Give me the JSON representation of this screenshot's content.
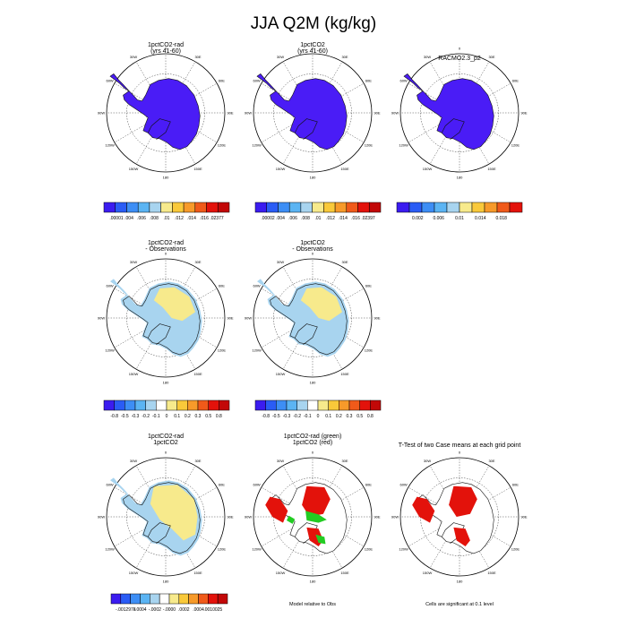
{
  "title": "JJA Q2M (kg/kg)",
  "colors": {
    "coast": "#111111",
    "model_fill": "#4a1cf6",
    "diff_positive": "#f7ea8c",
    "diff_negative": "#a8d4ef",
    "signif_red": "#e3120b",
    "signif_green": "#22cc22"
  },
  "panels": [
    {
      "title_lines": [
        "1pctCO2-rad",
        "(yrs 41-60)"
      ],
      "field": "model"
    },
    {
      "title_lines": [
        "1pctCO2",
        "(yrs 41-60)"
      ],
      "field": "model"
    },
    {
      "title_lines": [
        "RACMO2.3_p2",
        ""
      ],
      "field": "model"
    },
    {
      "title_lines": [
        "1pctCO2-rad",
        "- Observations"
      ],
      "field": "diff"
    },
    {
      "title_lines": [
        "1pctCO2",
        "- Observations"
      ],
      "field": "diff"
    },
    {
      "title_lines": [
        "1pctCO2-rad (green)",
        "1pctCO2 (red)"
      ],
      "field": "relative"
    },
    {
      "title_lines": [
        "1pctCO2-rad",
        "1pctCO2"
      ],
      "field": "diff2"
    },
    {
      "title_lines": [
        "T-Test of two Case means at each grid point",
        ""
      ],
      "field": "ttest"
    }
  ],
  "map_labels": {
    "lon_ticks": [
      "0",
      "30E",
      "60E",
      "90E",
      "120E",
      "150E",
      "180",
      "150W",
      "120W",
      "90W",
      "60W",
      "30W"
    ]
  },
  "colorbars": [
    {
      "colors": [
        "#3b1cf0",
        "#2a5cf5",
        "#3d8ef5",
        "#5bb4f3",
        "#a8d4ef",
        "#f7ea8c",
        "#f9c93a",
        "#f79a2a",
        "#f05a1a",
        "#e3120b",
        "#c20808"
      ],
      "labels": [
        ".00001",
        ".004",
        ".006",
        ".008",
        ".01",
        ".012",
        ".014",
        ".016",
        ".02377"
      ]
    },
    {
      "colors": [
        "#3b1cf0",
        "#2a5cf5",
        "#3d8ef5",
        "#5bb4f3",
        "#a8d4ef",
        "#f7ea8c",
        "#f9c93a",
        "#f79a2a",
        "#f05a1a",
        "#e3120b",
        "#c20808"
      ],
      "labels": [
        ".00002",
        ".004",
        ".006",
        ".008",
        ".01",
        ".012",
        ".014",
        ".016",
        ".02397"
      ]
    },
    {
      "colors": [
        "#3b1cf0",
        "#2a5cf5",
        "#3d8ef5",
        "#5bb4f3",
        "#a8d4ef",
        "#f7ea8c",
        "#f9c93a",
        "#f79a2a",
        "#f05a1a",
        "#e3120b"
      ],
      "labels": [
        "0.002",
        "0.006",
        "0.01",
        "0.014",
        "0.018"
      ]
    },
    {
      "colors": [
        "#3b1cf0",
        "#2a5cf5",
        "#3d8ef5",
        "#5bb4f3",
        "#a8d4ef",
        "#ffffff",
        "#f7ea8c",
        "#f9c93a",
        "#f79a2a",
        "#f05a1a",
        "#e3120b",
        "#c20808"
      ],
      "labels": [
        "-0.8",
        "-0.5",
        "-0.3",
        "-0.2",
        "-0.1",
        "0",
        "0.1",
        "0.2",
        "0.3",
        "0.5",
        "0.8"
      ]
    },
    {
      "colors": [
        "#3b1cf0",
        "#2a5cf5",
        "#3d8ef5",
        "#5bb4f3",
        "#a8d4ef",
        "#ffffff",
        "#f7ea8c",
        "#f9c93a",
        "#f79a2a",
        "#f05a1a",
        "#e3120b",
        "#c20808"
      ],
      "labels": [
        "-0.8",
        "-0.5",
        "-0.3",
        "-0.2",
        "-0.1",
        "0",
        "0.1",
        "0.2",
        "0.3",
        "0.5",
        "0.8"
      ]
    },
    {
      "colors": [
        "#3b1cf0",
        "#2a5cf5",
        "#3d8ef5",
        "#5bb4f3",
        "#a8d4ef",
        "#ffffff",
        "#f7ea8c",
        "#f9c93a",
        "#f79a2a",
        "#f05a1a",
        "#e3120b",
        "#c20808"
      ],
      "labels": [
        "-.0012978",
        "-.0004",
        "-.0002",
        "-.0000",
        ".0002",
        ".0004",
        ".0010025"
      ]
    }
  ],
  "footnotes": {
    "relative": "Model relative to Obs",
    "significance": "Cells are significant at 0.1 level"
  },
  "chart_data": {
    "type": "heatmap",
    "title": "JJA Q2M (kg/kg)",
    "variable": "Q2M",
    "units": "kg/kg",
    "season": "JJA",
    "domain": "Antarctica (south polar stereographic)",
    "panels": [
      {
        "title": "1pctCO2-rad (yrs 41-60)",
        "range": [
          1e-05,
          0.02377
        ],
        "dominant_bin": "< .004"
      },
      {
        "title": "1pctCO2 (yrs 41-60)",
        "range": [
          2e-05,
          0.02397
        ],
        "dominant_bin": "< .004"
      },
      {
        "title": "RACMO2.3_p2",
        "dominant_bin": "< 0.002"
      },
      {
        "title": "1pctCO2-rad - Observations",
        "levels": [
          -0.8,
          -0.5,
          -0.3,
          -0.2,
          -0.1,
          0,
          0.1,
          0.2,
          0.3,
          0.5,
          0.8
        ],
        "interior": "0 to 0.1",
        "coastal_margin": "-0.1 to 0"
      },
      {
        "title": "1pctCO2 - Observations",
        "levels": [
          -0.8,
          -0.5,
          -0.3,
          -0.2,
          -0.1,
          0,
          0.1,
          0.2,
          0.3,
          0.5,
          0.8
        ],
        "interior": "0 to 0.1",
        "coastal_margin": "-0.1 to 0"
      },
      {
        "title": "1pctCO2-rad 1pctCO2",
        "range": [
          -0.0012978,
          0.0010025
        ],
        "east_antarctica": "0 to .0002",
        "west_antarctica": "-.0002 to 0"
      },
      {
        "title": "1pctCO2-rad (green) 1pctCO2 (red)",
        "note": "Model relative to Obs"
      },
      {
        "title": "T-Test of two Case means at each grid point",
        "note": "Cells are significant at 0.1 level"
      }
    ]
  }
}
